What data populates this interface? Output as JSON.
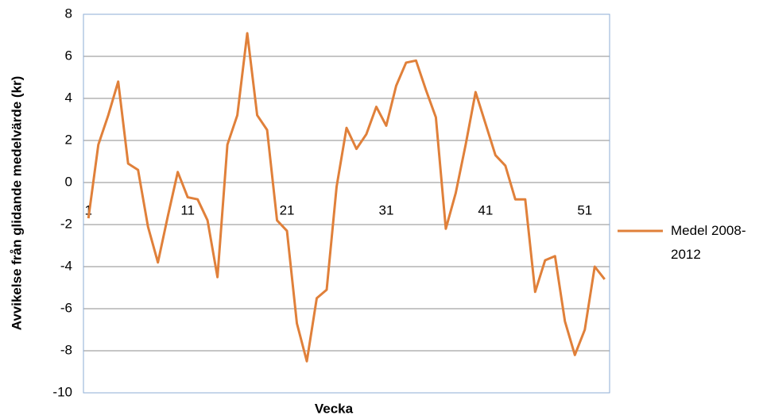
{
  "chart_data": {
    "type": "line",
    "x_label": "Vecka",
    "y_label": "Avvikelse från glidande medelvärde (kr)",
    "categories": [
      "1",
      null,
      null,
      null,
      null,
      null,
      null,
      null,
      null,
      null,
      "11",
      null,
      null,
      null,
      null,
      null,
      null,
      null,
      null,
      null,
      "21",
      null,
      null,
      null,
      null,
      null,
      null,
      null,
      null,
      null,
      "31",
      null,
      null,
      null,
      null,
      null,
      null,
      null,
      null,
      null,
      "41",
      null,
      null,
      null,
      null,
      null,
      null,
      null,
      null,
      null,
      "51",
      null,
      null
    ],
    "series": [
      {
        "name": "Medel 2008-2012",
        "color": "#e0803a",
        "values": [
          -1.7,
          1.8,
          3.2,
          4.8,
          0.9,
          0.6,
          -2.1,
          -3.8,
          -1.6,
          0.5,
          -0.7,
          -0.8,
          -1.8,
          -4.5,
          1.8,
          3.2,
          7.1,
          3.2,
          2.5,
          -1.8,
          -2.3,
          -6.7,
          -8.5,
          -5.5,
          -5.1,
          -0.2,
          2.6,
          1.6,
          2.3,
          3.6,
          2.7,
          4.6,
          5.7,
          5.8,
          4.4,
          3.1,
          -2.2,
          -0.5,
          1.8,
          4.3,
          2.8,
          1.3,
          0.8,
          -0.8,
          -0.8,
          -5.2,
          -3.7,
          -3.5,
          -6.6,
          -8.2,
          -7.0,
          -4.0,
          -4.6
        ]
      }
    ],
    "ylim": [
      -10,
      8
    ],
    "yticks": [
      -10,
      -8,
      -6,
      -4,
      -2,
      0,
      2,
      4,
      6,
      8
    ],
    "grid": true,
    "legend": "right"
  }
}
